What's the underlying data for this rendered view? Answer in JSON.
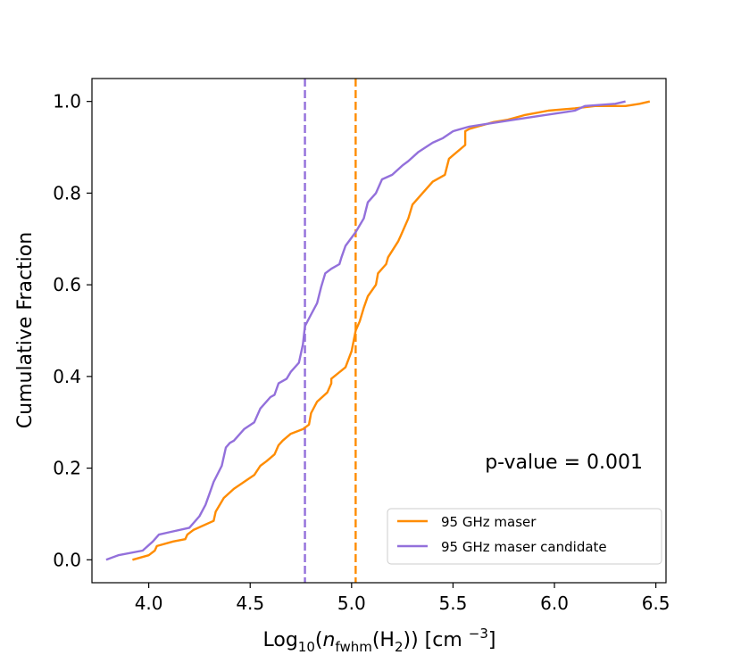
{
  "chart_data": {
    "type": "line",
    "xlabel_parts": {
      "prefix": "Log",
      "prefix_sub": "10",
      "open": "(",
      "var": "n",
      "var_sub": "fwhm",
      "inner": "(H",
      "inner_sub": "2",
      "close": ")) [cm ",
      "unit_sup": "−3",
      "end": "]"
    },
    "ylabel": "Cumulative Fraction",
    "xlim": [
      3.72,
      6.55
    ],
    "ylim": [
      -0.05,
      1.05
    ],
    "xticks": [
      4.0,
      4.5,
      5.0,
      5.5,
      6.0,
      6.5
    ],
    "xtick_labels": [
      "4.0",
      "4.5",
      "5.0",
      "5.5",
      "6.0",
      "6.5"
    ],
    "yticks": [
      0.0,
      0.2,
      0.4,
      0.6,
      0.8,
      1.0
    ],
    "ytick_labels": [
      "0.0",
      "0.2",
      "0.4",
      "0.6",
      "0.8",
      "1.0"
    ],
    "annotation": "p-value = 0.001",
    "legend_position": "lower right",
    "series": [
      {
        "name": "95 GHz maser",
        "color": "#ff8c00",
        "median": 5.02,
        "x": [
          3.92,
          4.0,
          4.03,
          4.04,
          4.12,
          4.18,
          4.19,
          4.22,
          4.32,
          4.33,
          4.37,
          4.42,
          4.47,
          4.52,
          4.55,
          4.58,
          4.62,
          4.64,
          4.66,
          4.7,
          4.76,
          4.79,
          4.8,
          4.83,
          4.88,
          4.9,
          4.9,
          4.97,
          5.0,
          5.02,
          5.04,
          5.06,
          5.08,
          5.12,
          5.13,
          5.17,
          5.18,
          5.23,
          5.24,
          5.28,
          5.3,
          5.35,
          5.4,
          5.46,
          5.48,
          5.56,
          5.56,
          5.58,
          5.62,
          5.7,
          5.77,
          5.85,
          5.97,
          6.1,
          6.2,
          6.35,
          6.42,
          6.47
        ],
        "y": [
          0.0,
          0.01,
          0.02,
          0.03,
          0.04,
          0.045,
          0.055,
          0.065,
          0.085,
          0.105,
          0.135,
          0.155,
          0.17,
          0.185,
          0.205,
          0.215,
          0.23,
          0.25,
          0.26,
          0.275,
          0.285,
          0.295,
          0.32,
          0.345,
          0.365,
          0.385,
          0.395,
          0.42,
          0.455,
          0.5,
          0.52,
          0.55,
          0.575,
          0.6,
          0.625,
          0.645,
          0.66,
          0.695,
          0.705,
          0.745,
          0.775,
          0.8,
          0.825,
          0.84,
          0.875,
          0.905,
          0.935,
          0.94,
          0.945,
          0.955,
          0.96,
          0.97,
          0.98,
          0.985,
          0.99,
          0.99,
          0.995,
          1.0
        ]
      },
      {
        "name": "95 GHz maser candidate",
        "color": "#9370db",
        "median": 4.77,
        "x": [
          3.79,
          3.85,
          3.97,
          4.02,
          4.05,
          4.1,
          4.2,
          4.25,
          4.28,
          4.3,
          4.32,
          4.36,
          4.38,
          4.4,
          4.42,
          4.47,
          4.52,
          4.55,
          4.6,
          4.62,
          4.64,
          4.68,
          4.7,
          4.74,
          4.76,
          4.77,
          4.8,
          4.83,
          4.85,
          4.87,
          4.9,
          4.94,
          4.95,
          4.97,
          5.02,
          5.06,
          5.08,
          5.12,
          5.15,
          5.2,
          5.25,
          5.28,
          5.33,
          5.4,
          5.45,
          5.5,
          5.58,
          5.65,
          5.8,
          5.95,
          6.1,
          6.15,
          6.3,
          6.35
        ],
        "y": [
          0.0,
          0.01,
          0.02,
          0.04,
          0.055,
          0.06,
          0.07,
          0.095,
          0.12,
          0.145,
          0.17,
          0.205,
          0.245,
          0.255,
          0.26,
          0.285,
          0.3,
          0.33,
          0.355,
          0.36,
          0.385,
          0.395,
          0.41,
          0.43,
          0.47,
          0.51,
          0.535,
          0.56,
          0.595,
          0.625,
          0.635,
          0.645,
          0.66,
          0.685,
          0.715,
          0.745,
          0.78,
          0.8,
          0.83,
          0.84,
          0.86,
          0.87,
          0.89,
          0.91,
          0.92,
          0.935,
          0.945,
          0.95,
          0.96,
          0.97,
          0.98,
          0.99,
          0.995,
          1.0
        ]
      }
    ]
  }
}
